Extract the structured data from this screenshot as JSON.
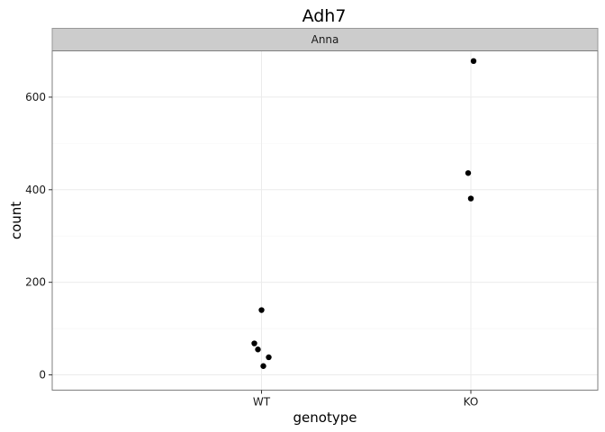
{
  "chart_data": {
    "type": "scatter",
    "title": "Adh7",
    "facet_label": "Anna",
    "xlabel": "genotype",
    "ylabel": "count",
    "x_categories": [
      "WT",
      "KO"
    ],
    "ylim": [
      -33,
      700
    ],
    "y_ticks": [
      0,
      200,
      400,
      600
    ],
    "y_tick_labels": [
      "0",
      "200",
      "400",
      "600"
    ],
    "grid": true,
    "points": [
      {
        "x": "WT",
        "y": 140
      },
      {
        "x": "WT",
        "y": 68
      },
      {
        "x": "WT",
        "y": 55
      },
      {
        "x": "WT",
        "y": 38
      },
      {
        "x": "WT",
        "y": 19
      },
      {
        "x": "KO",
        "y": 678
      },
      {
        "x": "KO",
        "y": 436
      },
      {
        "x": "KO",
        "y": 381
      }
    ],
    "colors": {
      "points": "#000000",
      "strip_fill": "#cccccc",
      "strip_border": "#999999",
      "panel_border": "#7f7f7f",
      "grid_major": "#ebebeb",
      "grid_minor": "#f5f5f5"
    }
  }
}
